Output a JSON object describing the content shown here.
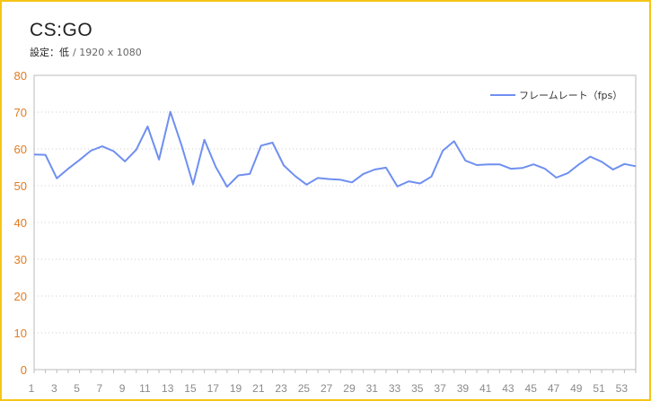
{
  "title": "CS:GO",
  "subtitle": {
    "setting": "設定：低",
    "resolution": "/ 1920 x 1080"
  },
  "colors": {
    "frame": "#f5c518",
    "series": "#6f8ff0",
    "y_ticks": "#e07b20",
    "x_ticks": "#8a8a8a",
    "grid": "#cccccc"
  },
  "chart_data": {
    "type": "line",
    "title": "CS:GO",
    "xlabel": "",
    "ylabel": "",
    "ylim": [
      0,
      80
    ],
    "y_ticks": [
      0,
      10,
      20,
      30,
      40,
      50,
      60,
      70,
      80
    ],
    "x_tick_labels": [
      1,
      3,
      5,
      7,
      9,
      11,
      13,
      15,
      17,
      19,
      21,
      23,
      25,
      27,
      29,
      31,
      33,
      35,
      37,
      39,
      41,
      43,
      45,
      47,
      49,
      51,
      53
    ],
    "grid": "horizontal dotted",
    "legend_position": "top-right",
    "x": [
      1,
      2,
      3,
      4,
      5,
      6,
      7,
      8,
      9,
      10,
      11,
      12,
      13,
      14,
      15,
      16,
      17,
      18,
      19,
      20,
      21,
      22,
      23,
      24,
      25,
      26,
      27,
      28,
      29,
      30,
      31,
      32,
      33,
      34,
      35,
      36,
      37,
      38,
      39,
      40,
      41,
      42,
      43,
      44,
      45,
      46,
      47,
      48,
      49,
      50,
      51,
      52,
      53,
      54
    ],
    "series": [
      {
        "name": "フレームレート（fps）",
        "values": [
          58.5,
          58.4,
          52.0,
          54.6,
          57.0,
          59.5,
          60.7,
          59.4,
          56.6,
          59.8,
          66.1,
          57.1,
          70.1,
          60.9,
          50.4,
          62.5,
          55.1,
          49.7,
          52.8,
          53.2,
          60.9,
          61.7,
          55.5,
          52.6,
          50.3,
          52.1,
          51.8,
          51.6,
          50.9,
          53.2,
          54.4,
          54.9,
          49.8,
          51.2,
          50.6,
          52.5,
          59.5,
          62.1,
          56.8,
          55.6,
          55.8,
          55.8,
          54.6,
          54.8,
          55.8,
          54.6,
          52.2,
          53.4,
          55.8,
          57.9,
          56.5,
          54.4,
          55.9,
          55.3
        ]
      }
    ]
  }
}
